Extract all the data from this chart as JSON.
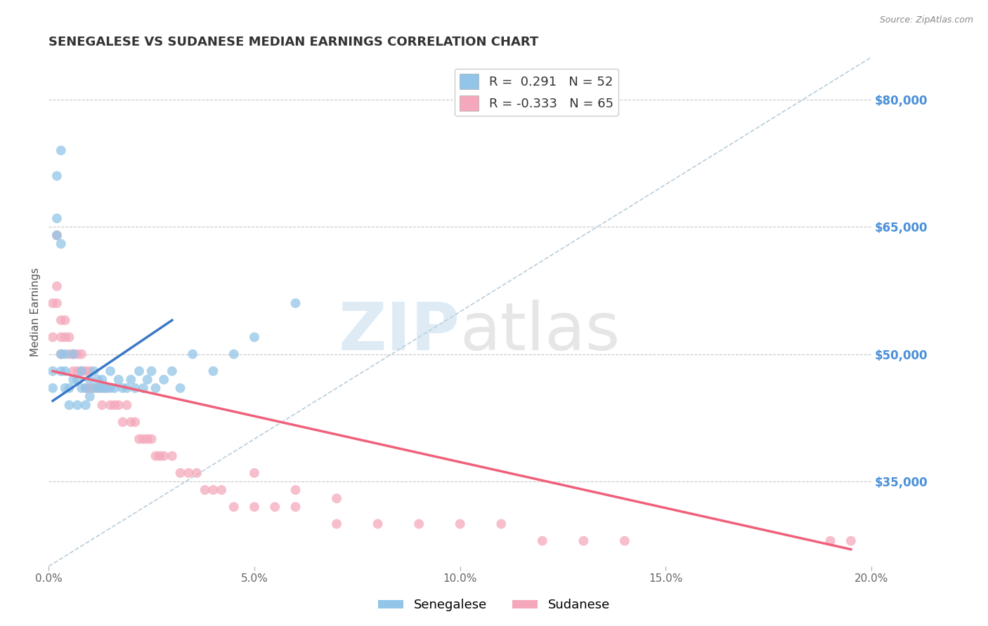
{
  "title": "SENEGALESE VS SUDANESE MEDIAN EARNINGS CORRELATION CHART",
  "source": "Source: ZipAtlas.com",
  "xlabel": "",
  "ylabel": "Median Earnings",
  "xlim": [
    0.0,
    0.2
  ],
  "ylim": [
    25000,
    85000
  ],
  "xticks": [
    0.0,
    0.05,
    0.1,
    0.15,
    0.2
  ],
  "xticklabels": [
    "0.0%",
    "5.0%",
    "10.0%",
    "15.0%",
    "20.0%"
  ],
  "yticks": [
    35000,
    50000,
    65000,
    80000
  ],
  "yticklabels": [
    "$35,000",
    "$50,000",
    "$65,000",
    "$80,000"
  ],
  "grid_color": "#c8c8c8",
  "background_color": "#ffffff",
  "senegalese_color": "#92c5e8",
  "sudanese_color": "#f5a8bc",
  "senegalese_line_color": "#3a78c9",
  "sudanese_line_color": "#f0607a",
  "diag_line_color": "#b0c8d8",
  "R_senegalese": 0.291,
  "N_senegalese": 52,
  "R_sudanese": -0.333,
  "N_sudanese": 65,
  "legend_label_senegalese": "Senegalese",
  "legend_label_sudanese": "Sudanese",
  "watermark_zip_color": "#b8d4e8",
  "watermark_atlas_color": "#c8c8c8",
  "title_color": "#333333",
  "axis_label_color": "#555555",
  "ytick_color": "#4a90d9",
  "xtick_color": "#666666",
  "senegalese_points_x": [
    0.001,
    0.001,
    0.002,
    0.002,
    0.003,
    0.003,
    0.003,
    0.004,
    0.004,
    0.004,
    0.005,
    0.005,
    0.006,
    0.006,
    0.007,
    0.007,
    0.008,
    0.008,
    0.009,
    0.009,
    0.01,
    0.01,
    0.011,
    0.011,
    0.012,
    0.012,
    0.013,
    0.013,
    0.014,
    0.015,
    0.015,
    0.016,
    0.017,
    0.018,
    0.019,
    0.02,
    0.021,
    0.022,
    0.023,
    0.024,
    0.025,
    0.026,
    0.028,
    0.03,
    0.032,
    0.035,
    0.04,
    0.045,
    0.05,
    0.06,
    0.002,
    0.003
  ],
  "senegalese_points_y": [
    46000,
    48000,
    64000,
    66000,
    63000,
    48000,
    50000,
    46000,
    48000,
    50000,
    46000,
    44000,
    47000,
    50000,
    44000,
    47000,
    46000,
    48000,
    46000,
    44000,
    45000,
    47000,
    46000,
    48000,
    46000,
    47000,
    46000,
    47000,
    46000,
    48000,
    46000,
    46000,
    47000,
    46000,
    46000,
    47000,
    46000,
    48000,
    46000,
    47000,
    48000,
    46000,
    47000,
    48000,
    46000,
    50000,
    48000,
    50000,
    52000,
    56000,
    71000,
    74000
  ],
  "sudanese_points_x": [
    0.001,
    0.001,
    0.002,
    0.002,
    0.002,
    0.003,
    0.003,
    0.003,
    0.004,
    0.004,
    0.005,
    0.005,
    0.006,
    0.006,
    0.007,
    0.007,
    0.008,
    0.008,
    0.009,
    0.009,
    0.01,
    0.01,
    0.011,
    0.012,
    0.013,
    0.013,
    0.014,
    0.015,
    0.016,
    0.017,
    0.018,
    0.019,
    0.02,
    0.021,
    0.022,
    0.023,
    0.024,
    0.025,
    0.026,
    0.027,
    0.028,
    0.03,
    0.032,
    0.034,
    0.036,
    0.038,
    0.04,
    0.042,
    0.045,
    0.05,
    0.055,
    0.06,
    0.07,
    0.08,
    0.09,
    0.1,
    0.11,
    0.12,
    0.13,
    0.14,
    0.05,
    0.06,
    0.07,
    0.19,
    0.195
  ],
  "sudanese_points_y": [
    56000,
    52000,
    64000,
    58000,
    56000,
    54000,
    52000,
    50000,
    54000,
    52000,
    50000,
    52000,
    50000,
    48000,
    50000,
    48000,
    50000,
    48000,
    48000,
    46000,
    46000,
    48000,
    46000,
    46000,
    46000,
    44000,
    46000,
    44000,
    44000,
    44000,
    42000,
    44000,
    42000,
    42000,
    40000,
    40000,
    40000,
    40000,
    38000,
    38000,
    38000,
    38000,
    36000,
    36000,
    36000,
    34000,
    34000,
    34000,
    32000,
    32000,
    32000,
    32000,
    30000,
    30000,
    30000,
    30000,
    30000,
    28000,
    28000,
    28000,
    36000,
    34000,
    33000,
    28000,
    28000
  ],
  "sen_trend_x": [
    0.001,
    0.03
  ],
  "sen_trend_y": [
    44500,
    54000
  ],
  "sud_trend_x": [
    0.001,
    0.195
  ],
  "sud_trend_y": [
    48000,
    27000
  ]
}
